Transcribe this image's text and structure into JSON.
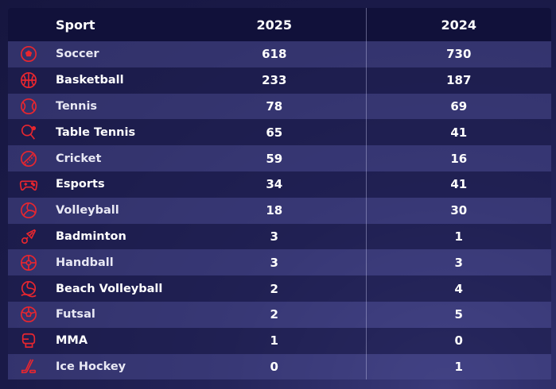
{
  "table": {
    "headers": {
      "sport": "Sport",
      "y2025": "2025",
      "y2024": "2024"
    },
    "accent_color": "#e8262f",
    "rows": [
      {
        "icon": "soccer-ball-icon",
        "sport": "Soccer",
        "y2025": "618",
        "y2024": "730"
      },
      {
        "icon": "basketball-icon",
        "sport": "Basketball",
        "y2025": "233",
        "y2024": "187"
      },
      {
        "icon": "tennis-ball-icon",
        "sport": "Tennis",
        "y2025": "78",
        "y2024": "69"
      },
      {
        "icon": "table-tennis-icon",
        "sport": "Table Tennis",
        "y2025": "65",
        "y2024": "41"
      },
      {
        "icon": "cricket-ball-icon",
        "sport": "Cricket",
        "y2025": "59",
        "y2024": "16"
      },
      {
        "icon": "gamepad-icon",
        "sport": "Esports",
        "y2025": "34",
        "y2024": "41"
      },
      {
        "icon": "volleyball-icon",
        "sport": "Volleyball",
        "y2025": "18",
        "y2024": "30"
      },
      {
        "icon": "shuttlecock-icon",
        "sport": "Badminton",
        "y2025": "3",
        "y2024": "1"
      },
      {
        "icon": "handball-icon",
        "sport": "Handball",
        "y2025": "3",
        "y2024": "3"
      },
      {
        "icon": "beach-volleyball-icon",
        "sport": "Beach Volleyball",
        "y2025": "2",
        "y2024": "4"
      },
      {
        "icon": "futsal-ball-icon",
        "sport": "Futsal",
        "y2025": "2",
        "y2024": "5"
      },
      {
        "icon": "boxing-glove-icon",
        "sport": "MMA",
        "y2025": "1",
        "y2024": "0"
      },
      {
        "icon": "hockey-stick-icon",
        "sport": "Ice Hockey",
        "y2025": "0",
        "y2024": "1"
      }
    ]
  }
}
